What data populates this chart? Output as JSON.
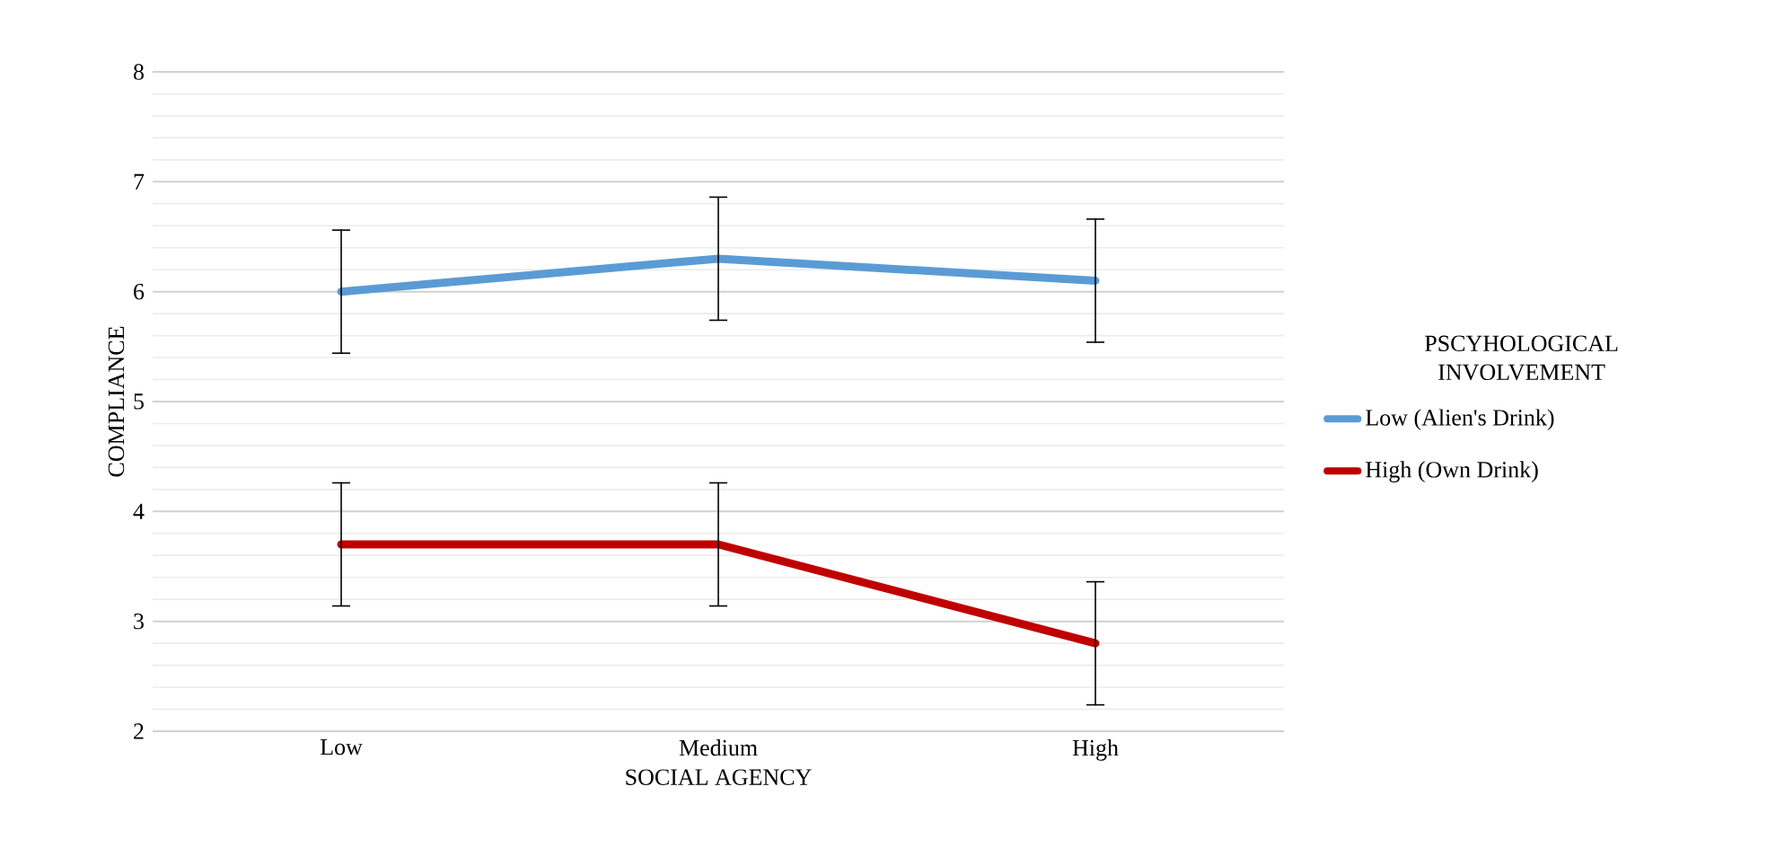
{
  "chart_data": {
    "type": "line",
    "xlabel": "SOCIAL AGENCY",
    "ylabel": "COMPLIANCE",
    "legend_title": "PSCYHOLOGICAL INVOLVEMENT",
    "categories": [
      "Low",
      "Medium",
      "High"
    ],
    "series": [
      {
        "name": "Low (Alien's Drink)",
        "color": "#5b9bd5",
        "values": [
          6.0,
          6.3,
          6.1
        ],
        "errors": [
          0.56,
          0.56,
          0.56
        ]
      },
      {
        "name": "High (Own Drink)",
        "color": "#c00000",
        "values": [
          3.7,
          3.7,
          2.8
        ],
        "errors": [
          0.56,
          0.56,
          0.56
        ]
      }
    ],
    "ylim": [
      2,
      8
    ],
    "yticks": [
      2,
      3,
      4,
      5,
      6,
      7,
      8
    ],
    "grid": "y",
    "legend": "right",
    "marker": "none",
    "line_style": "solid"
  }
}
